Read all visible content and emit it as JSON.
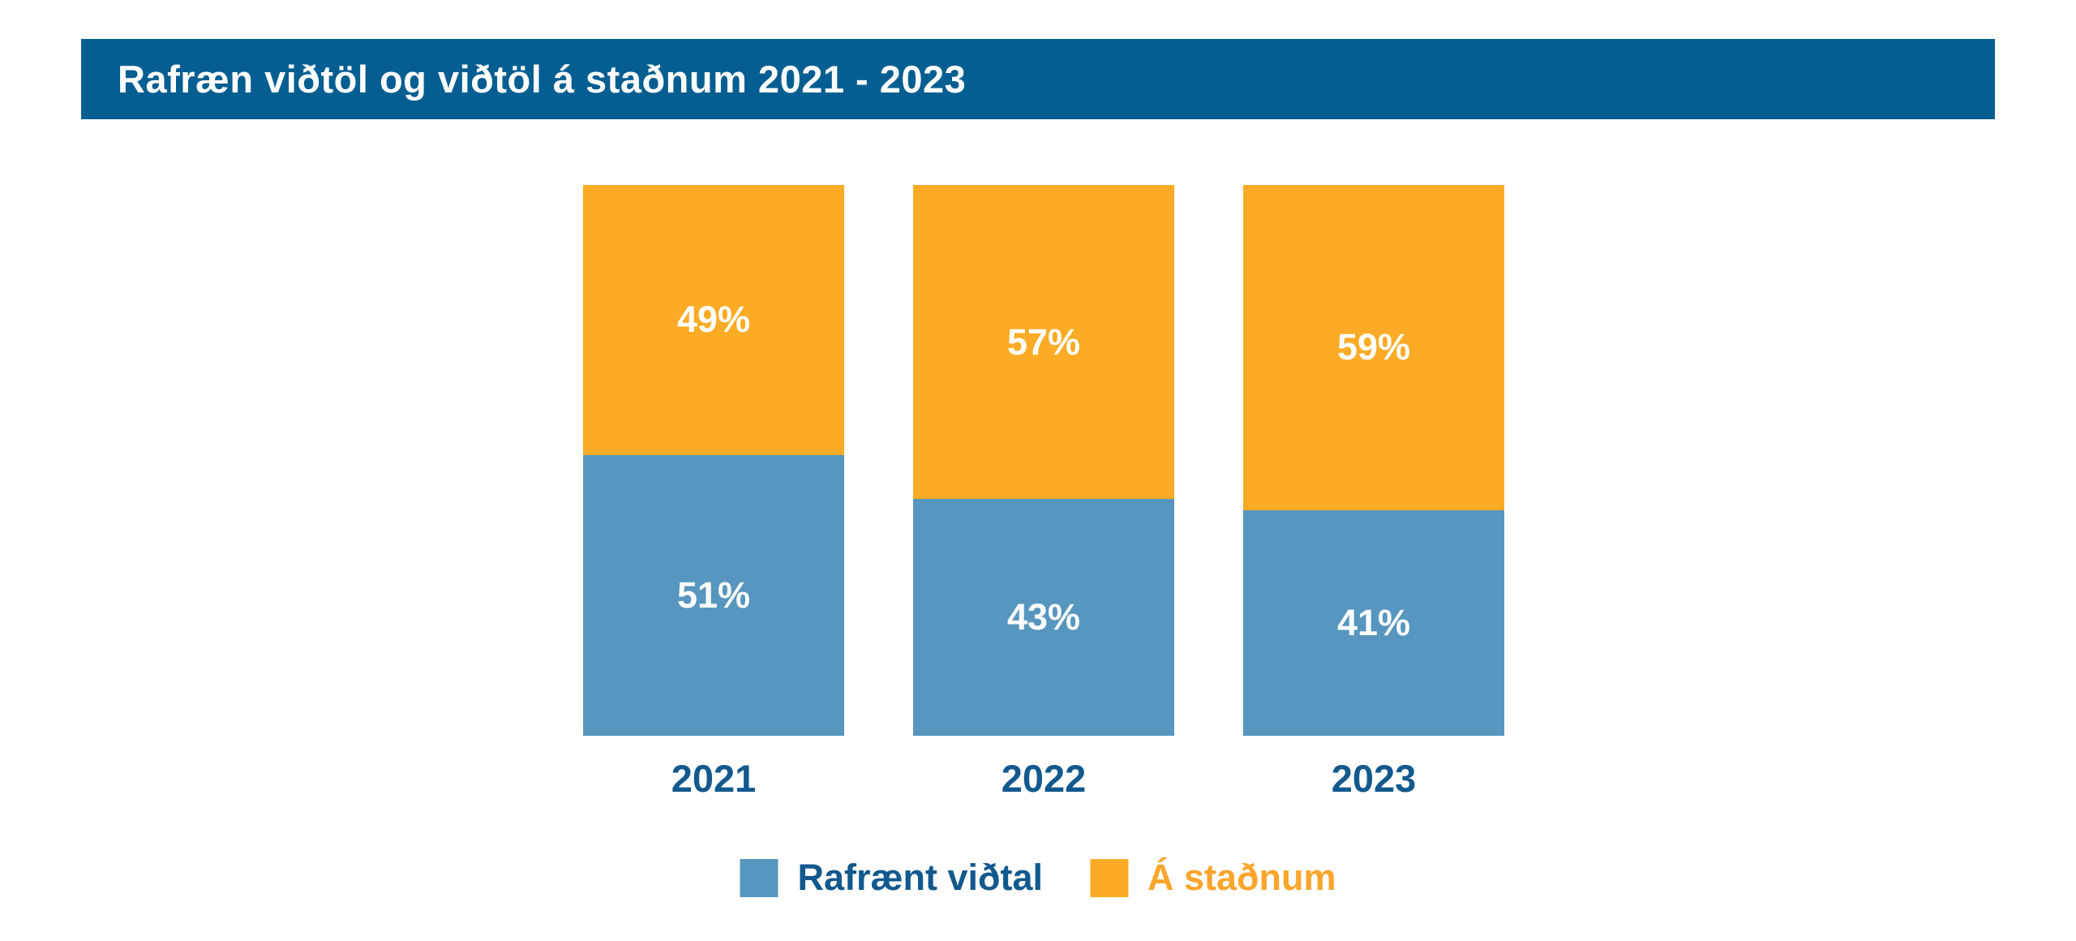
{
  "header": {
    "title": "Rafræn viðtöl og viðtöl á staðnum 2021 - 2023"
  },
  "chart_data": {
    "type": "bar",
    "stacked": true,
    "percent_stacked": true,
    "title": "Rafræn viðtöl og viðtöl á staðnum 2021 - 2023",
    "categories": [
      "2021",
      "2022",
      "2023"
    ],
    "series": [
      {
        "name": "Á staðnum",
        "color": "#FBAB26",
        "values": [
          49,
          57,
          59
        ]
      },
      {
        "name": "Rafrænt viðtal",
        "color": "#5796BE",
        "values": [
          51,
          43,
          41
        ]
      }
    ],
    "stack_order": "top-to-bottom",
    "value_suffix": "%",
    "ylim": [
      0,
      100
    ],
    "grid": false,
    "axes_visible": false,
    "legend_position": "bottom"
  },
  "legend": {
    "items": [
      {
        "label": "Rafrænt viðtal",
        "swatch_color": "#5796BE",
        "text_color": "#12598E"
      },
      {
        "label": "Á staðnum",
        "swatch_color": "#FBAB26",
        "text_color": "#FAA52B"
      }
    ]
  },
  "colors": {
    "header_bg": "#045E91",
    "header_text": "#FFFFFF",
    "bar_blue": "#5796BE",
    "bar_orange": "#FBAB26",
    "value_label_text": "#FFFFFF",
    "axis_label_text": "#12598E",
    "background": "#FFFFFF"
  }
}
